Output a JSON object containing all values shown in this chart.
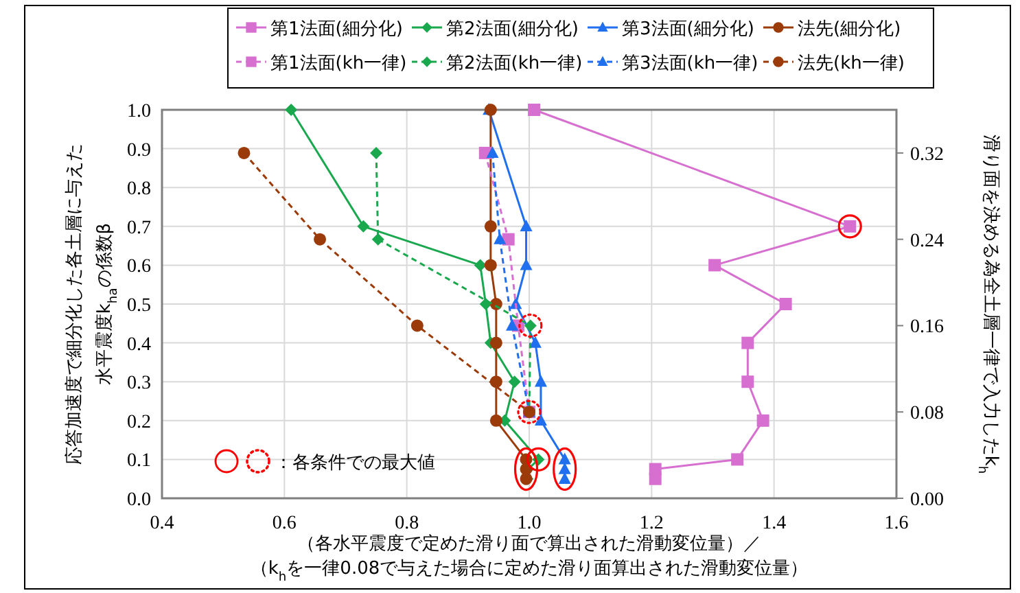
{
  "chart_data": {
    "type": "line",
    "xlabel": "（各水平震度で定めた滑り面で算出された滑動変位量）／（k$_{h}$を一律0.08で与えた場合に定めた滑り面算出された滑動変位量）",
    "ylabel": "応答加速度で細分化した各土層に与えた水平震度k$_{ha}$の係数β",
    "y2label": "滑り面を決める為全土層一律で入力したk$_{h}$",
    "xlim": [
      0.4,
      1.6
    ],
    "xticks": [
      0.4,
      0.6,
      0.8,
      {
        "value": 1,
        "label": "1.0"
      },
      1.2,
      1.4,
      1.6
    ],
    "ylim": [
      0,
      1
    ],
    "yticks": [
      {
        "value": 0,
        "label": "0.0"
      },
      0.1,
      0.2,
      0.3,
      0.4,
      0.5,
      0.6,
      0.7,
      0.8,
      0.9,
      {
        "value": 1,
        "label": "1.0"
      }
    ],
    "y2lim": [
      0,
      0.36
    ],
    "y2ticks": [
      {
        "value": 0,
        "label": "0.00"
      },
      0.08,
      0.16,
      0.24,
      0.32
    ],
    "grid": true,
    "legend": "top",
    "annotations": [
      "：各条件での最大値"
    ],
    "series": [
      {
        "name": "第1法面(細分化)",
        "color": "#d66fcf",
        "marker": "square",
        "line_style": "solid",
        "x": [
          1.008,
          1.524,
          1.303,
          1.419,
          1.357,
          1.357,
          1.382,
          1.34,
          1.206,
          1.206
        ],
        "values": [
          1,
          0.7,
          0.6,
          0.5,
          0.4,
          0.3,
          0.2,
          0.1,
          0.075,
          0.05
        ]
      },
      {
        "name": "第2法面(細分化)",
        "color": "#1aa84f",
        "marker": "diamond",
        "line_style": "solid",
        "x": [
          0.611,
          0.729,
          0.92,
          0.929,
          0.937,
          0.976,
          0.96,
          1.015,
          0.998,
          0.997
        ],
        "values": [
          1,
          0.7,
          0.6,
          0.5,
          0.4,
          0.3,
          0.2,
          0.1,
          0.075,
          0.05
        ]
      },
      {
        "name": "第3法面(細分化)",
        "color": "#1f6fef",
        "marker": "triangle",
        "line_style": "solid",
        "x": [
          0.934,
          0.995,
          0.995,
          0.978,
          1.01,
          1.019,
          1.019,
          1.058,
          1.058,
          1.058
        ],
        "values": [
          1,
          0.7,
          0.6,
          0.5,
          0.4,
          0.3,
          0.2,
          0.1,
          0.075,
          0.05
        ]
      },
      {
        "name": "法先(細分化)",
        "color": "#9c3b0a",
        "marker": "circle",
        "line_style": "solid",
        "x": [
          0.937,
          0.937,
          0.937,
          0.946,
          0.946,
          0.946,
          0.946,
          0.995,
          0.995,
          0.995
        ],
        "values": [
          1,
          0.7,
          0.6,
          0.5,
          0.4,
          0.3,
          0.2,
          0.1,
          0.075,
          0.05
        ]
      },
      {
        "name": "第1法面(kh一律)",
        "color": "#d66fcf",
        "marker": "square",
        "line_style": "dashed",
        "axis": "y2",
        "x": [
          0.928,
          0.966,
          0.982,
          1.0
        ],
        "values": [
          0.32,
          0.24,
          0.16,
          0.08
        ]
      },
      {
        "name": "第2法面(kh一律)",
        "color": "#1aa84f",
        "marker": "diamond",
        "line_style": "dashed",
        "axis": "y2",
        "x": [
          0.75,
          0.753,
          1.002,
          1.0
        ],
        "values": [
          0.32,
          0.24,
          0.16,
          0.08
        ]
      },
      {
        "name": "第3法面(kh一律)",
        "color": "#1f6fef",
        "marker": "triangle",
        "line_style": "dashed",
        "axis": "y2",
        "x": [
          0.94,
          0.952,
          0.972,
          1.0
        ],
        "values": [
          0.32,
          0.24,
          0.16,
          0.08
        ]
      },
      {
        "name": "法先(kh一律)",
        "color": "#9c3b0a",
        "marker": "circle",
        "line_style": "dashed",
        "axis": "y2",
        "x": [
          0.534,
          0.658,
          0.817,
          1.0
        ],
        "values": [
          0.32,
          0.24,
          0.16,
          0.08
        ]
      }
    ]
  }
}
